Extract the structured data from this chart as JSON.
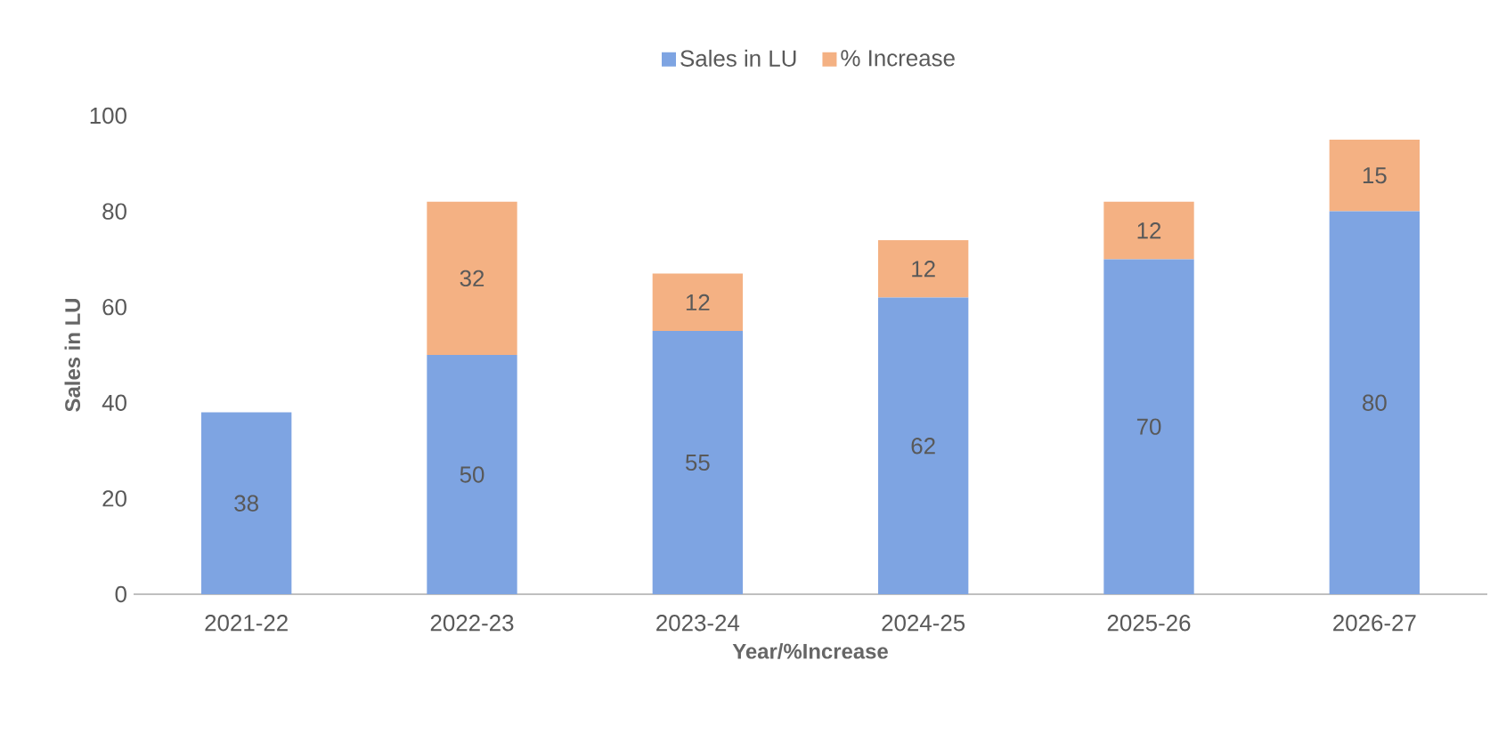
{
  "chart_data": {
    "type": "bar",
    "stacked": true,
    "xlabel": "Year/%Increase",
    "ylabel": "Sales in LU",
    "categories": [
      "2021-22",
      "2022-23",
      "2023-24",
      "2024-25",
      "2025-26",
      "2026-27"
    ],
    "series": [
      {
        "name": "Sales in LU",
        "color": "#7ea4e2",
        "values": [
          38,
          50,
          55,
          62,
          70,
          80
        ]
      },
      {
        "name": "% Increase",
        "color": "#f4b183",
        "values": [
          null,
          32,
          12,
          12,
          12,
          15
        ]
      }
    ],
    "ylim": [
      0,
      100
    ],
    "yticks": [
      0,
      20,
      40,
      60,
      80,
      100
    ],
    "data_labels": true,
    "legend": "top",
    "grid": false
  }
}
